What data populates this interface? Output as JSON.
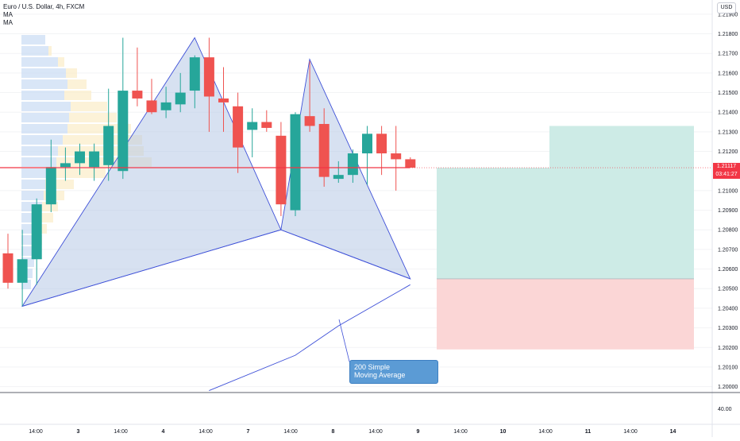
{
  "header": {
    "symbol_line": "Euro / U.S. Dollar, 4h, FXCM",
    "indicators": [
      "MA",
      "MA"
    ]
  },
  "currency_label": "USD",
  "price_axis": {
    "ticks": [
      "1.21900",
      "1.21800",
      "1.21700",
      "1.21600",
      "1.21500",
      "1.21400",
      "1.21300",
      "1.21200",
      "1.21000",
      "1.20900",
      "1.20800",
      "1.20700",
      "1.20600",
      "1.20500",
      "1.20400",
      "1.20300",
      "1.20200",
      "1.20100",
      "1.20000"
    ],
    "last_price": "1.21117",
    "countdown": "03:41:27",
    "last_price_color": "#f23645"
  },
  "oscillator_axis": {
    "tick": "40.00"
  },
  "time_axis": {
    "ticks": [
      "14:00",
      "3",
      "14:00",
      "4",
      "14:00",
      "7",
      "14:00",
      "8",
      "14:00",
      "9",
      "14:00",
      "10",
      "14:00",
      "11",
      "14:00",
      "14"
    ]
  },
  "annotation": {
    "line1": "200 Simple",
    "line2": "Moving Average"
  },
  "colors": {
    "up": "#26a69a",
    "down": "#ef5350",
    "pattern_fill": "#b7c8e6",
    "pattern_stroke": "#3f51d8",
    "profit_zone": "#cdebe6",
    "loss_zone": "#fbd6d6",
    "callout": "#5b9bd5"
  },
  "chart_data": {
    "type": "candlestick",
    "timeframe": "4h",
    "candles": [
      {
        "o": 1.2068,
        "h": 1.2078,
        "l": 1.205,
        "c": 1.2053
      },
      {
        "o": 1.2053,
        "h": 1.208,
        "l": 1.2041,
        "c": 1.2065
      },
      {
        "o": 1.2065,
        "h": 1.2096,
        "l": 1.2052,
        "c": 1.2093
      },
      {
        "o": 1.2093,
        "h": 1.2126,
        "l": 1.2089,
        "c": 1.2112
      },
      {
        "o": 1.2112,
        "h": 1.2122,
        "l": 1.2105,
        "c": 1.2114
      },
      {
        "o": 1.2114,
        "h": 1.2124,
        "l": 1.2108,
        "c": 1.212
      },
      {
        "o": 1.2112,
        "h": 1.2124,
        "l": 1.2105,
        "c": 1.212
      },
      {
        "o": 1.2113,
        "h": 1.2152,
        "l": 1.2105,
        "c": 1.2133
      },
      {
        "o": 1.211,
        "h": 1.2178,
        "l": 1.2106,
        "c": 1.2151
      },
      {
        "o": 1.2151,
        "h": 1.2173,
        "l": 1.2143,
        "c": 1.2147
      },
      {
        "o": 1.2146,
        "h": 1.2157,
        "l": 1.2139,
        "c": 1.214
      },
      {
        "o": 1.2141,
        "h": 1.2153,
        "l": 1.2137,
        "c": 1.2145
      },
      {
        "o": 1.2144,
        "h": 1.216,
        "l": 1.214,
        "c": 1.215
      },
      {
        "o": 1.2151,
        "h": 1.2169,
        "l": 1.2142,
        "c": 1.2168
      },
      {
        "o": 1.2168,
        "h": 1.2178,
        "l": 1.213,
        "c": 1.2148
      },
      {
        "o": 1.2147,
        "h": 1.2163,
        "l": 1.213,
        "c": 1.2145
      },
      {
        "o": 1.2143,
        "h": 1.215,
        "l": 1.2109,
        "c": 1.2122
      },
      {
        "o": 1.2131,
        "h": 1.2142,
        "l": 1.2117,
        "c": 1.2135
      },
      {
        "o": 1.2135,
        "h": 1.2141,
        "l": 1.213,
        "c": 1.2132
      },
      {
        "o": 1.2128,
        "h": 1.2135,
        "l": 1.2087,
        "c": 1.2093
      },
      {
        "o": 1.209,
        "h": 1.214,
        "l": 1.2087,
        "c": 1.2139
      },
      {
        "o": 1.2138,
        "h": 1.2166,
        "l": 1.213,
        "c": 1.2133
      },
      {
        "o": 1.2134,
        "h": 1.2142,
        "l": 1.2102,
        "c": 1.2107
      },
      {
        "o": 1.2106,
        "h": 1.2115,
        "l": 1.2104,
        "c": 1.2108
      },
      {
        "o": 1.2108,
        "h": 1.2121,
        "l": 1.2104,
        "c": 1.2119
      },
      {
        "o": 1.2119,
        "h": 1.2133,
        "l": 1.2103,
        "c": 1.2129
      },
      {
        "o": 1.2129,
        "h": 1.2133,
        "l": 1.2108,
        "c": 1.2119
      },
      {
        "o": 1.2119,
        "h": 1.2133,
        "l": 1.21,
        "c": 1.2116
      },
      {
        "o": 1.2116,
        "h": 1.2117,
        "l": 1.2112,
        "c": 1.21117
      }
    ],
    "harmonic_pattern": [
      {
        "t": 0,
        "p": 1.2041
      },
      {
        "t": 12,
        "p": 1.2178
      },
      {
        "t": 18,
        "p": 1.208
      },
      {
        "t": 20,
        "p": 1.2167
      },
      {
        "t": 27,
        "p": 1.2055
      }
    ],
    "moving_average_200": [
      {
        "t": 13,
        "p": 1.1998
      },
      {
        "t": 19,
        "p": 1.2016
      },
      {
        "t": 22,
        "p": 1.2031
      },
      {
        "t": 27,
        "p": 1.2052
      }
    ],
    "position": {
      "entry": 1.21117,
      "target": 1.2133,
      "stop": 1.2055,
      "stop_floor": 1.2019
    },
    "ylim": [
      1.1997,
      1.2194
    ],
    "oscillator_level": 40.0
  }
}
